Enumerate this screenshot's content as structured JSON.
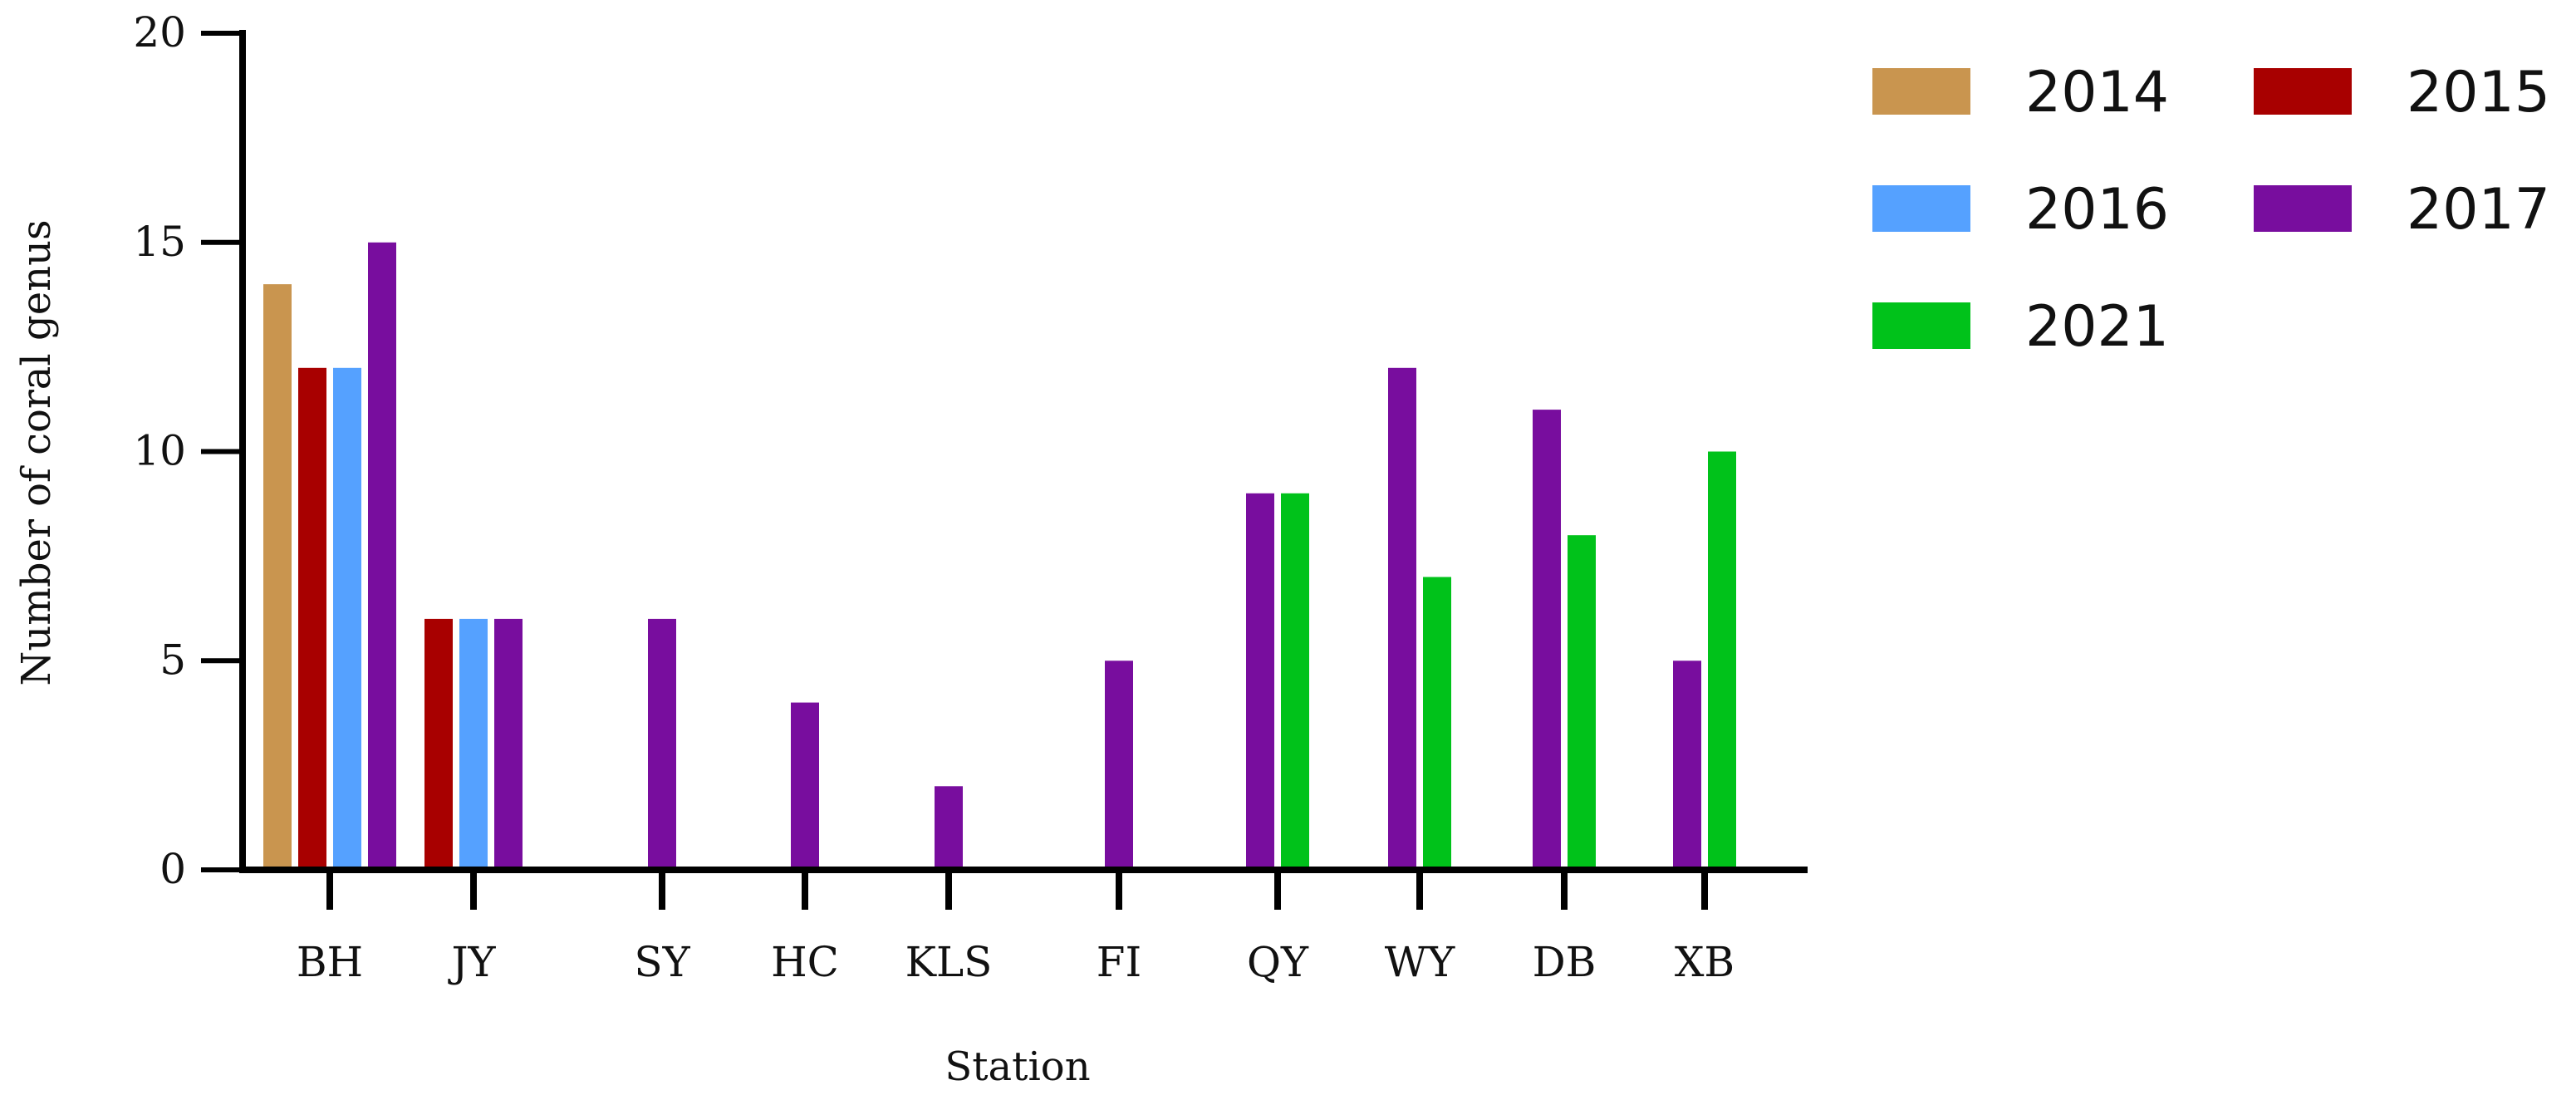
{
  "chart_data": {
    "type": "bar",
    "title": "",
    "xlabel": "Station",
    "ylabel": "Number of coral genus",
    "ylim": [
      0,
      20
    ],
    "yticks": [
      0,
      5,
      10,
      15,
      20
    ],
    "categories": [
      "BH",
      "JY",
      "SY",
      "HC",
      "KLS",
      "FI",
      "QY",
      "WY",
      "DB",
      "XB"
    ],
    "legend_position": "top-right",
    "grid": false,
    "series": [
      {
        "name": "2014",
        "color": "#C9954F",
        "values": [
          14,
          null,
          null,
          null,
          null,
          null,
          null,
          null,
          null,
          null
        ]
      },
      {
        "name": "2015",
        "color": "#A80000",
        "values": [
          12,
          6,
          null,
          null,
          null,
          null,
          null,
          null,
          null,
          null
        ]
      },
      {
        "name": "2016",
        "color": "#55A1FF",
        "values": [
          12,
          6,
          null,
          null,
          null,
          null,
          null,
          null,
          null,
          null
        ]
      },
      {
        "name": "2017",
        "color": "#780D9E",
        "values": [
          15,
          6,
          6,
          4,
          2,
          5,
          9,
          12,
          11,
          5
        ]
      },
      {
        "name": "2021",
        "color": "#00C21A",
        "values": [
          null,
          null,
          null,
          null,
          null,
          null,
          9,
          7,
          8,
          10
        ]
      }
    ]
  }
}
